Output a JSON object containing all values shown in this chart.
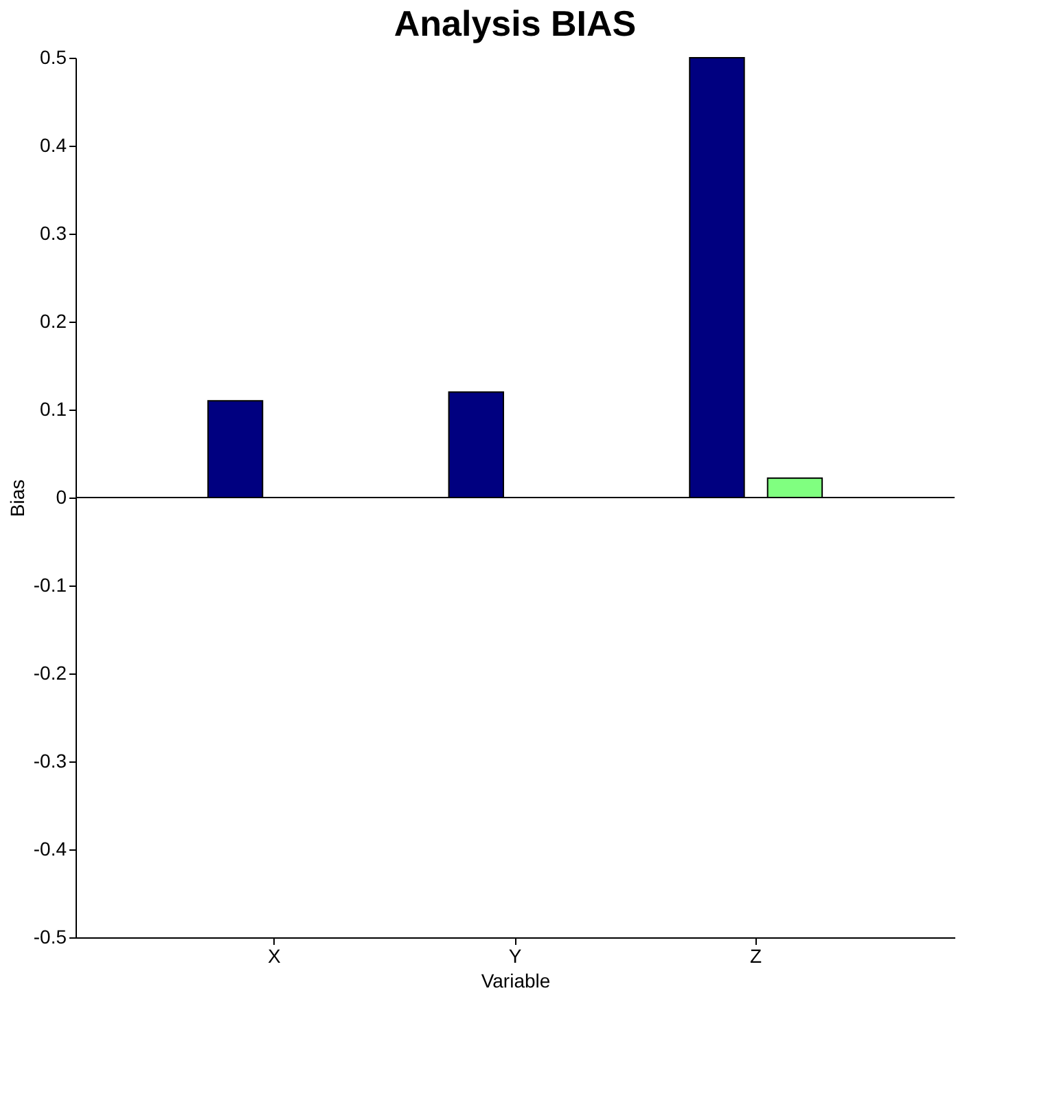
{
  "chart_data": {
    "type": "bar",
    "title": "Analysis BIAS",
    "xlabel": "Variable",
    "ylabel": "Bias",
    "categories": [
      "X",
      "Y",
      "Z"
    ],
    "series": [
      {
        "color": "#000080",
        "values": [
          0.11,
          0.12,
          0.5
        ]
      },
      {
        "color": "#80ff80",
        "values": [
          0,
          0,
          0.022
        ]
      }
    ],
    "ylim": [
      -0.5,
      0.5
    ],
    "yticks": [
      -0.5,
      -0.4,
      -0.3,
      -0.2,
      -0.1,
      0,
      0.1,
      0.2,
      0.3,
      0.4,
      0.5
    ],
    "ref_lines": [
      {
        "axis": "y",
        "value": 0,
        "color": "#000000"
      }
    ],
    "grid": false,
    "legend": false
  }
}
